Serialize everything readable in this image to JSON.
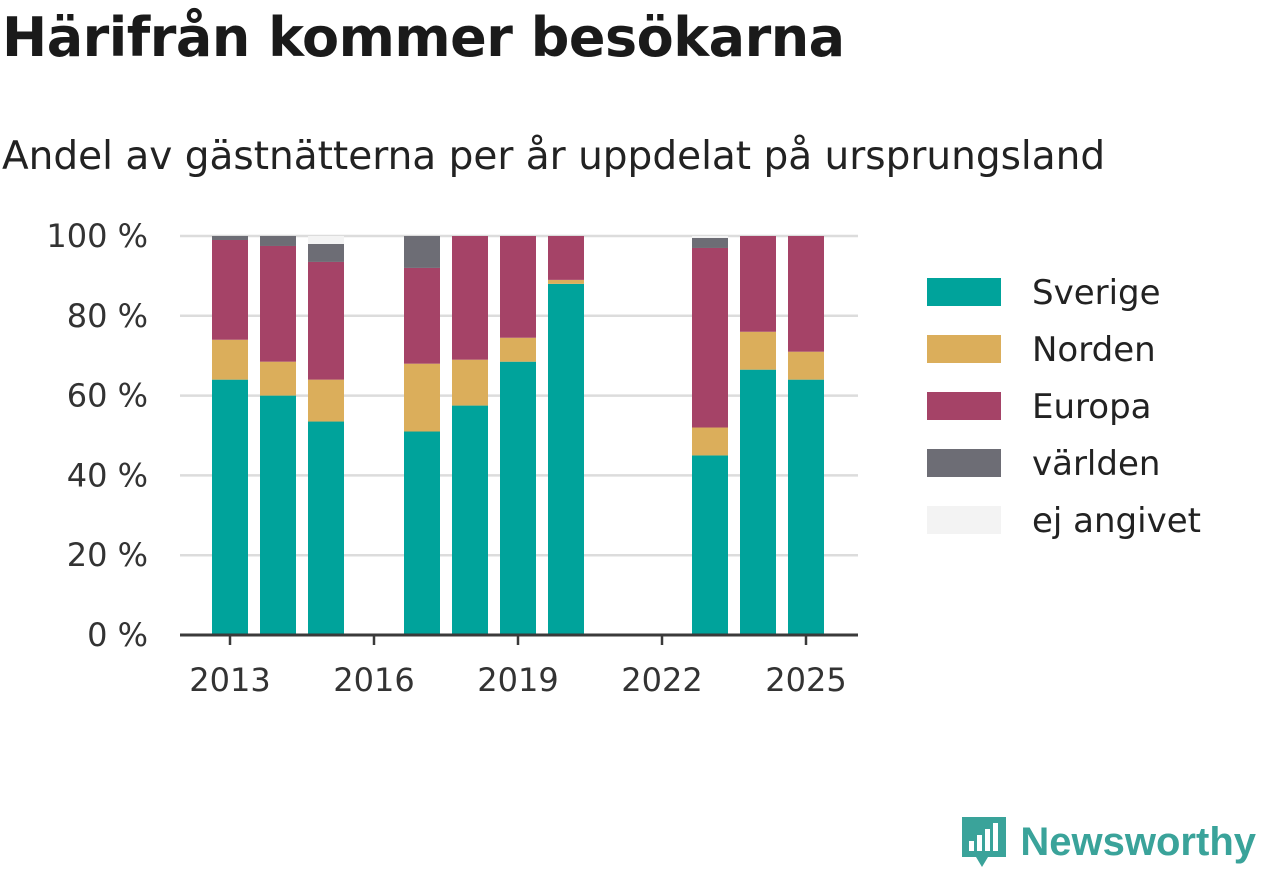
{
  "title": "Härifrån kommer besökarna",
  "subtitle": "Andel av gästnätterna per år uppdelat på ursprungsland",
  "brand": "Newsworthy",
  "chart_data": {
    "type": "bar",
    "stacked": true,
    "title": "Härifrån kommer besökarna",
    "subtitle": "Andel av gästnätterna per år uppdelat på ursprungsland",
    "categories": [
      2013,
      2014,
      2015,
      2016,
      2017,
      2018,
      2019,
      2020,
      2021,
      2022,
      2023,
      2024,
      2025
    ],
    "series": [
      {
        "name": "Sverige",
        "color": "#00a39b",
        "values": [
          64,
          60,
          53.5,
          null,
          51,
          57.5,
          68.5,
          88,
          null,
          null,
          45,
          66.5,
          64
        ]
      },
      {
        "name": "Norden",
        "color": "#dbae5b",
        "values": [
          10,
          8.5,
          10.5,
          null,
          17,
          11.5,
          6,
          1,
          null,
          null,
          7,
          9.5,
          7
        ]
      },
      {
        "name": "Europa",
        "color": "#a54367",
        "values": [
          25,
          29,
          29.5,
          null,
          24,
          31,
          25.5,
          11,
          null,
          null,
          45,
          24,
          29
        ]
      },
      {
        "name": "världen",
        "color": "#6d6d75",
        "values": [
          1,
          2.5,
          4.5,
          null,
          8,
          0,
          0,
          0,
          null,
          null,
          2.5,
          0,
          0
        ]
      },
      {
        "name": "ej angivet",
        "color": "#f3f3f3",
        "values": [
          0,
          0,
          2,
          null,
          0,
          0,
          0,
          0,
          null,
          null,
          0.5,
          0,
          0
        ]
      }
    ],
    "xticks": [
      "2013",
      "2016",
      "2019",
      "2022",
      "2025"
    ],
    "yticks": [
      "0 %",
      "20 %",
      "40 %",
      "60 %",
      "80 %",
      "100 %"
    ],
    "ylim": [
      0,
      100
    ],
    "grid": true,
    "legend_position": "right"
  }
}
